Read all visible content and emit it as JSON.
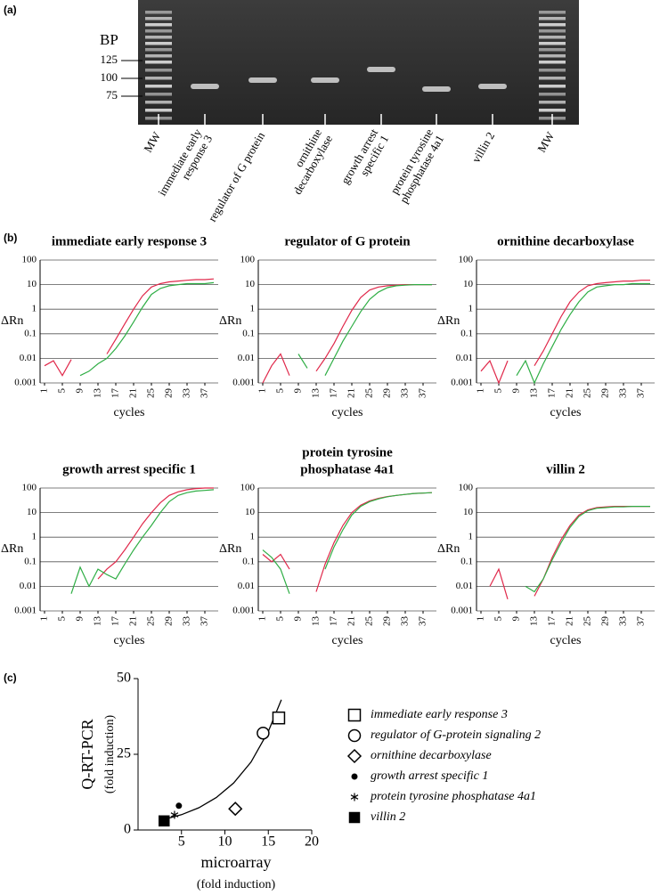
{
  "panel_labels": [
    "(a)",
    "(b)",
    "(c)"
  ],
  "gel": {
    "axis_label": "BP",
    "bp_ticks": [
      125,
      100,
      75
    ],
    "lanes": [
      [
        "MW"
      ],
      [
        "immediate early",
        "response 3"
      ],
      [
        "regulator of G protein"
      ],
      [
        "ornithine",
        "decarboxylase"
      ],
      [
        "growth arrest",
        "specific 1"
      ],
      [
        "protein tyrosine",
        "phosphatase 4a1"
      ],
      [
        "villin 2"
      ],
      [
        "MW"
      ]
    ]
  },
  "chart_data": [
    {
      "type": "line",
      "title": "immediate early response 3",
      "ylabel": "ΔRn",
      "xlabel": "cycles",
      "log_y": true,
      "grid": true,
      "x": [
        1,
        3,
        5,
        7,
        9,
        11,
        13,
        15,
        17,
        19,
        21,
        23,
        25,
        27,
        29,
        31,
        33,
        35,
        37,
        39
      ],
      "xlim": [
        0,
        40
      ],
      "xticks": [
        1,
        5,
        9,
        13,
        17,
        21,
        25,
        29,
        33,
        37
      ],
      "ylim": [
        0.001,
        100
      ],
      "yticks": [
        100,
        10,
        1,
        0.1,
        0.01,
        0.001
      ],
      "series": [
        {
          "color": "#e0284a",
          "values": [
            0.005,
            0.008,
            0.002,
            0.009,
            null,
            null,
            null,
            0.015,
            0.06,
            0.25,
            1,
            3.5,
            8,
            11,
            13,
            14,
            15,
            16,
            16,
            17
          ]
        },
        {
          "color": "#2fae45",
          "values": [
            null,
            null,
            null,
            null,
            0.002,
            0.003,
            0.006,
            0.01,
            0.025,
            0.08,
            0.3,
            1.2,
            4,
            7,
            9,
            10,
            11,
            11,
            11,
            12
          ]
        }
      ]
    },
    {
      "type": "line",
      "title": "regulator of G protein",
      "ylabel": "ΔRn",
      "xlabel": "cycles",
      "log_y": true,
      "grid": true,
      "x": [
        1,
        3,
        5,
        7,
        9,
        11,
        13,
        15,
        17,
        19,
        21,
        23,
        25,
        27,
        29,
        31,
        33,
        35,
        37,
        39
      ],
      "xlim": [
        0,
        40
      ],
      "xticks": [
        1,
        5,
        9,
        13,
        17,
        21,
        25,
        29,
        33,
        37
      ],
      "ylim": [
        0.001,
        100
      ],
      "yticks": [
        100,
        10,
        1,
        0.1,
        0.01,
        0.001
      ],
      "series": [
        {
          "color": "#e0284a",
          "values": [
            0.001,
            0.005,
            0.015,
            0.002,
            null,
            null,
            0.003,
            0.01,
            0.04,
            0.2,
            0.9,
            3,
            6,
            8,
            9,
            9.5,
            10,
            10,
            10,
            10
          ]
        },
        {
          "color": "#2fae45",
          "values": [
            null,
            null,
            null,
            null,
            0.015,
            0.004,
            null,
            0.002,
            0.01,
            0.05,
            0.2,
            0.8,
            2.5,
            5,
            7.5,
            9,
            9.5,
            10,
            10,
            10
          ]
        }
      ]
    },
    {
      "type": "line",
      "title": "ornithine decarboxylase",
      "ylabel": "ΔRn",
      "xlabel": "cycles",
      "log_y": true,
      "grid": true,
      "x": [
        1,
        3,
        5,
        7,
        9,
        11,
        13,
        15,
        17,
        19,
        21,
        23,
        25,
        27,
        29,
        31,
        33,
        35,
        37,
        39
      ],
      "xlim": [
        0,
        40
      ],
      "xticks": [
        1,
        5,
        9,
        13,
        17,
        21,
        25,
        29,
        33,
        37
      ],
      "ylim": [
        0.001,
        100
      ],
      "yticks": [
        100,
        10,
        1,
        0.1,
        0.01,
        0.001
      ],
      "series": [
        {
          "color": "#e0284a",
          "values": [
            0.003,
            0.008,
            0.001,
            0.008,
            null,
            null,
            0.005,
            0.02,
            0.1,
            0.5,
            2,
            5,
            9,
            11,
            12,
            13,
            14,
            14,
            15,
            15
          ]
        },
        {
          "color": "#2fae45",
          "values": [
            null,
            null,
            null,
            null,
            0.002,
            0.008,
            0.001,
            0.006,
            0.03,
            0.15,
            0.6,
            2,
            5,
            8,
            9,
            10,
            10,
            11,
            11,
            11
          ]
        }
      ]
    },
    {
      "type": "line",
      "title": "growth arrest specific 1",
      "ylabel": "ΔRn",
      "xlabel": "cycles",
      "log_y": true,
      "grid": true,
      "x": [
        1,
        3,
        5,
        7,
        9,
        11,
        13,
        15,
        17,
        19,
        21,
        23,
        25,
        27,
        29,
        31,
        33,
        35,
        37,
        39
      ],
      "xlim": [
        0,
        40
      ],
      "xticks": [
        1,
        5,
        9,
        13,
        17,
        21,
        25,
        29,
        33,
        37
      ],
      "ylim": [
        0.001,
        100
      ],
      "yticks": [
        100,
        10,
        1,
        0.1,
        0.01,
        0.001
      ],
      "series": [
        {
          "color": "#e0284a",
          "values": [
            null,
            null,
            null,
            null,
            null,
            null,
            0.02,
            0.05,
            0.1,
            0.3,
            1,
            3.5,
            10,
            25,
            50,
            70,
            85,
            95,
            100,
            100
          ]
        },
        {
          "color": "#2fae45",
          "values": [
            null,
            null,
            null,
            0.005,
            0.06,
            0.01,
            0.05,
            0.03,
            0.02,
            0.08,
            0.3,
            1,
            3,
            10,
            28,
            50,
            65,
            75,
            80,
            85
          ]
        }
      ]
    },
    {
      "type": "line",
      "title": [
        "protein tyrosine",
        "phosphatase 4a1"
      ],
      "ylabel": "ΔRn",
      "xlabel": "cycles",
      "log_y": true,
      "grid": true,
      "x": [
        1,
        3,
        5,
        7,
        9,
        11,
        13,
        15,
        17,
        19,
        21,
        23,
        25,
        27,
        29,
        31,
        33,
        35,
        37,
        39
      ],
      "xlim": [
        0,
        40
      ],
      "xticks": [
        1,
        5,
        9,
        13,
        17,
        21,
        25,
        29,
        33,
        37
      ],
      "ylim": [
        0.001,
        100
      ],
      "yticks": [
        100,
        10,
        1,
        0.1,
        0.01,
        0.001
      ],
      "series": [
        {
          "color": "#e0284a",
          "values": [
            0.2,
            0.1,
            0.2,
            0.05,
            null,
            null,
            0.006,
            0.08,
            0.6,
            3,
            10,
            20,
            30,
            38,
            45,
            50,
            55,
            60,
            62,
            65
          ]
        },
        {
          "color": "#2fae45",
          "values": [
            0.3,
            0.15,
            0.05,
            0.005,
            null,
            null,
            null,
            0.05,
            0.4,
            2,
            8,
            18,
            28,
            36,
            44,
            50,
            55,
            60,
            62,
            65
          ]
        }
      ]
    },
    {
      "type": "line",
      "title": "villin 2",
      "ylabel": "ΔRn",
      "xlabel": "cycles",
      "log_y": true,
      "grid": true,
      "x": [
        1,
        3,
        5,
        7,
        9,
        11,
        13,
        15,
        17,
        19,
        21,
        23,
        25,
        27,
        29,
        31,
        33,
        35,
        37,
        39
      ],
      "xlim": [
        0,
        40
      ],
      "xticks": [
        1,
        5,
        9,
        13,
        17,
        21,
        25,
        29,
        33,
        37
      ],
      "ylim": [
        0.001,
        100
      ],
      "yticks": [
        100,
        10,
        1,
        0.1,
        0.01,
        0.001
      ],
      "series": [
        {
          "color": "#e0284a",
          "values": [
            null,
            0.01,
            0.05,
            0.003,
            null,
            null,
            0.004,
            0.02,
            0.15,
            0.8,
            3,
            8,
            13,
            16,
            17,
            18,
            18,
            18,
            18,
            18
          ]
        },
        {
          "color": "#2fae45",
          "values": [
            null,
            null,
            null,
            null,
            null,
            0.01,
            0.006,
            0.02,
            0.12,
            0.6,
            2.5,
            7,
            12,
            15,
            16,
            17,
            17,
            18,
            18,
            18
          ]
        }
      ]
    },
    {
      "type": "scatter",
      "xlabel": [
        "microarray",
        "(fold induction)"
      ],
      "ylabel": [
        "Q-RT-PCR",
        "(fold induction)"
      ],
      "xlim": [
        0,
        20
      ],
      "ylim": [
        0,
        50
      ],
      "xticks": [
        5,
        10,
        15,
        20
      ],
      "yticks": [
        0,
        25,
        50
      ],
      "series": [
        {
          "name": "immediate early response 3",
          "marker": "open-square",
          "x": [
            16.2
          ],
          "values": [
            37
          ]
        },
        {
          "name": "regulator of G-protein signaling 2",
          "marker": "open-circle",
          "x": [
            14.4
          ],
          "values": [
            32
          ]
        },
        {
          "name": "ornithine decarboxylase",
          "marker": "open-diamond",
          "x": [
            11.2
          ],
          "values": [
            7
          ]
        },
        {
          "name": "growth arrest specific 1",
          "marker": "dot",
          "x": [
            4.7
          ],
          "values": [
            8
          ]
        },
        {
          "name": "protein tyrosine phosphatase 4a1",
          "marker": "asterisk",
          "x": [
            4.2
          ],
          "values": [
            5
          ]
        },
        {
          "name": "villin 2",
          "marker": "filled-square",
          "x": [
            3
          ],
          "values": [
            3
          ]
        }
      ],
      "fit": {
        "x": [
          3,
          5,
          7,
          9,
          11,
          13,
          15,
          16.5
        ],
        "values": [
          3.49,
          5.07,
          7.35,
          10.7,
          15.5,
          22.4,
          32.6,
          43
        ]
      }
    }
  ]
}
